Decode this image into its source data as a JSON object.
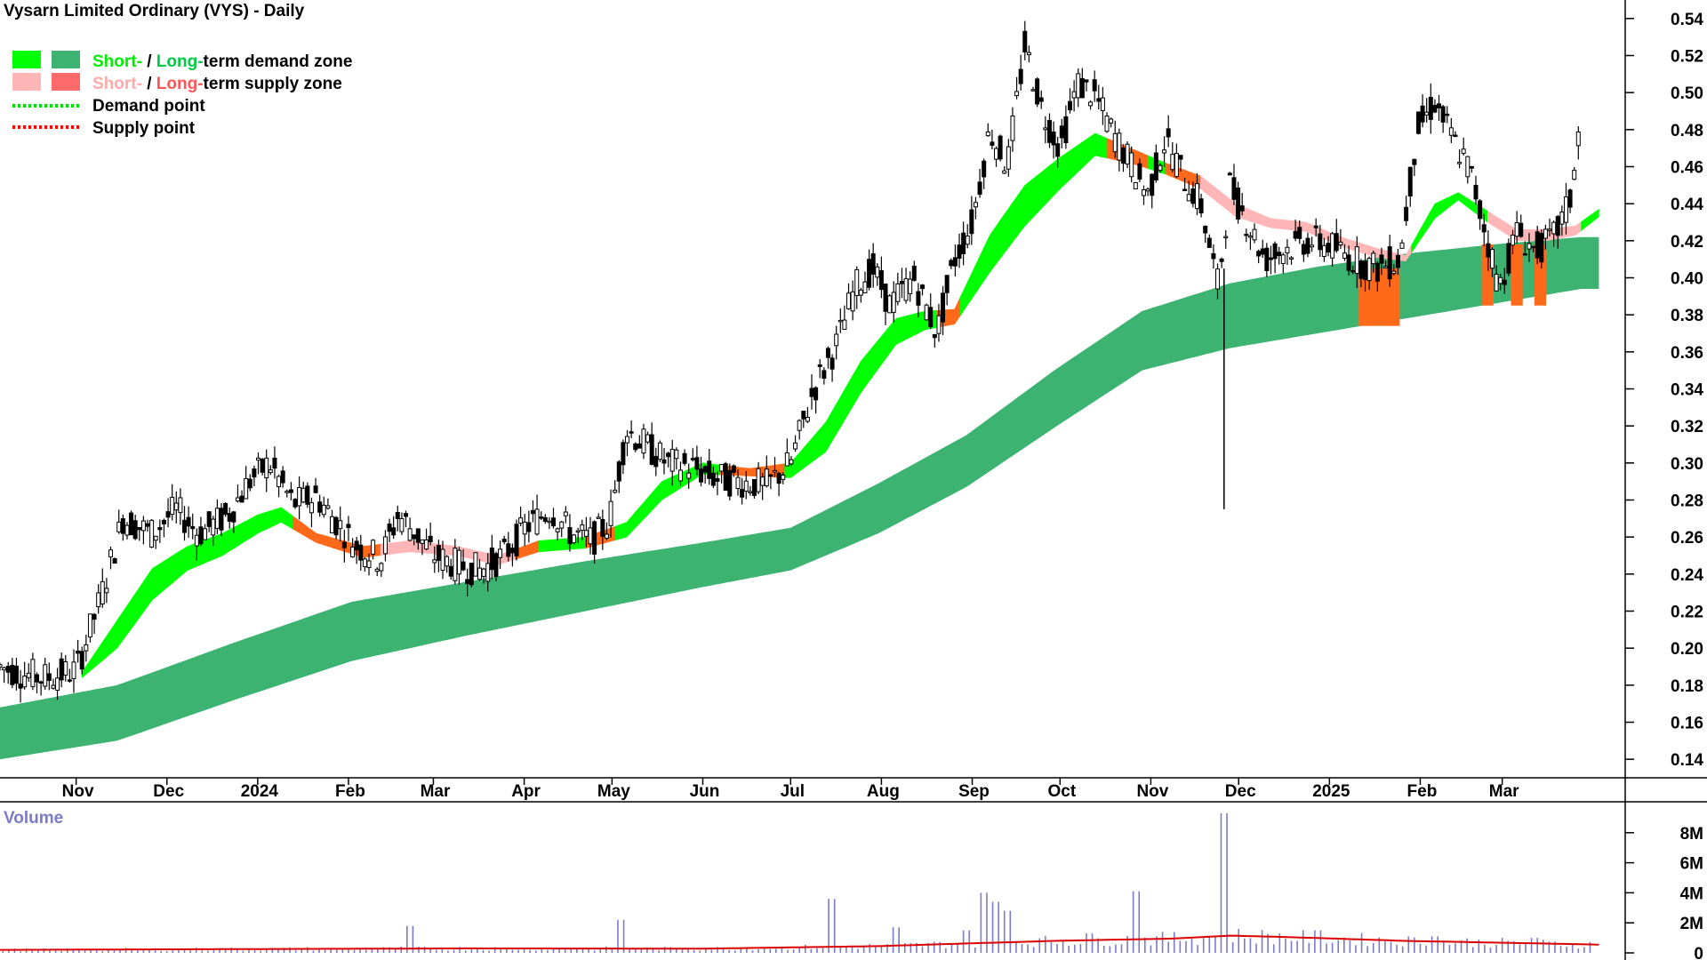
{
  "header": {
    "title": "Vysarn Limited Ordinary (VYS) - Daily"
  },
  "legend": {
    "items": [
      {
        "label_a": "Short-",
        "sep": " / ",
        "label_b": "Long-",
        "rest": "term demand zone",
        "color_a": "#00ff00",
        "color_b": "#3cb371"
      },
      {
        "label_a": "Short-",
        "sep": " / ",
        "label_b": "Long-",
        "rest": "term supply zone",
        "color_a": "#ffb6b6",
        "color_b": "#ff6b6b"
      },
      {
        "label": "Demand point",
        "color": "#00dd00"
      },
      {
        "label": "Supply point",
        "color": "#ff0000"
      }
    ]
  },
  "volume_panel": {
    "label": "Volume"
  },
  "colors": {
    "long_demand": "#3cb371",
    "short_demand": "#00ff00",
    "short_supply": "#ffb6b6",
    "long_supply": "#ff6b6b",
    "orange_zone": "#ff6a1a",
    "candle": "#000000",
    "volume_bar": "#7b7bc8",
    "volume_avg": "#dd0000",
    "grid_axis": "#000000"
  },
  "chart_data": [
    {
      "type": "line",
      "subtype": "candlestick-with-bands",
      "title": "Vysarn Limited Ordinary (VYS) - Daily",
      "ylim": [
        0.13,
        0.55
      ],
      "y_ticks": [
        "0.54",
        "0.52",
        "0.50",
        "0.48",
        "0.46",
        "0.44",
        "0.42",
        "0.40",
        "0.38",
        "0.36",
        "0.34",
        "0.32",
        "0.30",
        "0.28",
        "0.26",
        "0.24",
        "0.22",
        "0.20",
        "0.18",
        "0.16",
        "0.14"
      ],
      "x_months": [
        {
          "label": "Nov",
          "day": 26
        },
        {
          "label": "Dec",
          "day": 57
        },
        {
          "label": "2024",
          "day": 88
        },
        {
          "label": "Feb",
          "day": 119
        },
        {
          "label": "Mar",
          "day": 148
        },
        {
          "label": "Apr",
          "day": 179
        },
        {
          "label": "May",
          "day": 209
        },
        {
          "label": "Jun",
          "day": 240
        },
        {
          "label": "Jul",
          "day": 270
        },
        {
          "label": "Aug",
          "day": 301
        },
        {
          "label": "Sep",
          "day": 332
        },
        {
          "label": "Oct",
          "day": 362
        },
        {
          "label": "Nov",
          "day": 393
        },
        {
          "label": "Dec",
          "day": 423
        },
        {
          "label": "2025",
          "day": 454
        },
        {
          "label": "Feb",
          "day": 485
        },
        {
          "label": "Mar",
          "day": 513
        }
      ],
      "xlim_days": [
        0,
        555
      ],
      "price_path": [
        [
          0,
          0.19
        ],
        [
          8,
          0.186
        ],
        [
          16,
          0.184
        ],
        [
          26,
          0.188
        ],
        [
          34,
          0.225
        ],
        [
          42,
          0.27
        ],
        [
          52,
          0.262
        ],
        [
          60,
          0.275
        ],
        [
          68,
          0.262
        ],
        [
          78,
          0.272
        ],
        [
          85,
          0.29
        ],
        [
          92,
          0.3
        ],
        [
          100,
          0.278
        ],
        [
          108,
          0.282
        ],
        [
          115,
          0.268
        ],
        [
          122,
          0.255
        ],
        [
          130,
          0.248
        ],
        [
          136,
          0.272
        ],
        [
          142,
          0.262
        ],
        [
          148,
          0.25
        ],
        [
          156,
          0.245
        ],
        [
          164,
          0.242
        ],
        [
          172,
          0.25
        ],
        [
          180,
          0.266
        ],
        [
          188,
          0.275
        ],
        [
          195,
          0.262
        ],
        [
          202,
          0.258
        ],
        [
          208,
          0.268
        ],
        [
          214,
          0.318
        ],
        [
          220,
          0.31
        ],
        [
          228,
          0.3
        ],
        [
          236,
          0.298
        ],
        [
          244,
          0.292
        ],
        [
          252,
          0.29
        ],
        [
          262,
          0.288
        ],
        [
          270,
          0.3
        ],
        [
          278,
          0.34
        ],
        [
          286,
          0.365
        ],
        [
          292,
          0.395
        ],
        [
          298,
          0.405
        ],
        [
          304,
          0.385
        ],
        [
          312,
          0.4
        ],
        [
          320,
          0.37
        ],
        [
          326,
          0.41
        ],
        [
          332,
          0.43
        ],
        [
          338,
          0.48
        ],
        [
          344,
          0.46
        ],
        [
          350,
          0.525
        ],
        [
          356,
          0.49
        ],
        [
          362,
          0.47
        ],
        [
          368,
          0.505
        ],
        [
          374,
          0.498
        ],
        [
          380,
          0.478
        ],
        [
          386,
          0.462
        ],
        [
          392,
          0.445
        ],
        [
          398,
          0.475
        ],
        [
          404,
          0.455
        ],
        [
          410,
          0.44
        ],
        [
          416,
          0.395
        ],
        [
          420,
          0.45
        ],
        [
          426,
          0.43
        ],
        [
          432,
          0.41
        ],
        [
          438,
          0.415
        ],
        [
          446,
          0.42
        ],
        [
          454,
          0.418
        ],
        [
          462,
          0.41
        ],
        [
          470,
          0.405
        ],
        [
          478,
          0.41
        ],
        [
          484,
          0.48
        ],
        [
          490,
          0.495
        ],
        [
          496,
          0.475
        ],
        [
          502,
          0.458
        ],
        [
          508,
          0.42
        ],
        [
          512,
          0.395
        ],
        [
          518,
          0.425
        ],
        [
          524,
          0.415
        ],
        [
          530,
          0.42
        ],
        [
          536,
          0.44
        ],
        [
          540,
          0.488
        ]
      ],
      "bands": {
        "long_upper": [
          [
            0,
            0.168
          ],
          [
            40,
            0.18
          ],
          [
            80,
            0.203
          ],
          [
            120,
            0.225
          ],
          [
            160,
            0.236
          ],
          [
            200,
            0.247
          ],
          [
            240,
            0.257
          ],
          [
            270,
            0.265
          ],
          [
            300,
            0.289
          ],
          [
            330,
            0.315
          ],
          [
            360,
            0.35
          ],
          [
            390,
            0.382
          ],
          [
            420,
            0.397
          ],
          [
            450,
            0.406
          ],
          [
            480,
            0.413
          ],
          [
            510,
            0.418
          ],
          [
            540,
            0.422
          ]
        ],
        "long_lower": [
          [
            0,
            0.14
          ],
          [
            40,
            0.15
          ],
          [
            80,
            0.172
          ],
          [
            120,
            0.193
          ],
          [
            160,
            0.207
          ],
          [
            200,
            0.22
          ],
          [
            240,
            0.233
          ],
          [
            270,
            0.242
          ],
          [
            300,
            0.262
          ],
          [
            330,
            0.287
          ],
          [
            360,
            0.319
          ],
          [
            390,
            0.35
          ],
          [
            420,
            0.362
          ],
          [
            450,
            0.37
          ],
          [
            480,
            0.378
          ],
          [
            510,
            0.386
          ],
          [
            540,
            0.394
          ]
        ],
        "short_upper": [
          [
            28,
            0.187
          ],
          [
            40,
            0.215
          ],
          [
            52,
            0.243
          ],
          [
            64,
            0.255
          ],
          [
            76,
            0.262
          ],
          [
            88,
            0.272
          ],
          [
            96,
            0.276
          ],
          [
            108,
            0.262
          ],
          [
            124,
            0.255
          ],
          [
            140,
            0.258
          ],
          [
            156,
            0.255
          ],
          [
            170,
            0.25
          ],
          [
            184,
            0.258
          ],
          [
            200,
            0.26
          ],
          [
            214,
            0.268
          ],
          [
            226,
            0.29
          ],
          [
            240,
            0.3
          ],
          [
            256,
            0.297
          ],
          [
            270,
            0.3
          ],
          [
            282,
            0.322
          ],
          [
            294,
            0.355
          ],
          [
            306,
            0.378
          ],
          [
            316,
            0.382
          ],
          [
            326,
            0.383
          ],
          [
            338,
            0.423
          ],
          [
            350,
            0.45
          ],
          [
            362,
            0.465
          ],
          [
            374,
            0.478
          ],
          [
            386,
            0.47
          ],
          [
            398,
            0.462
          ],
          [
            410,
            0.455
          ],
          [
            422,
            0.44
          ],
          [
            434,
            0.432
          ],
          [
            446,
            0.43
          ],
          [
            458,
            0.422
          ],
          [
            470,
            0.416
          ],
          [
            480,
            0.412
          ],
          [
            490,
            0.44
          ],
          [
            498,
            0.446
          ],
          [
            508,
            0.436
          ],
          [
            518,
            0.426
          ],
          [
            528,
            0.426
          ],
          [
            538,
            0.428
          ],
          [
            546,
            0.437
          ]
        ],
        "short_lower": [
          [
            28,
            0.184
          ],
          [
            40,
            0.2
          ],
          [
            52,
            0.226
          ],
          [
            64,
            0.242
          ],
          [
            76,
            0.25
          ],
          [
            88,
            0.262
          ],
          [
            96,
            0.268
          ],
          [
            108,
            0.257
          ],
          [
            124,
            0.249
          ],
          [
            140,
            0.252
          ],
          [
            156,
            0.25
          ],
          [
            170,
            0.245
          ],
          [
            184,
            0.252
          ],
          [
            200,
            0.254
          ],
          [
            214,
            0.26
          ],
          [
            226,
            0.28
          ],
          [
            240,
            0.294
          ],
          [
            256,
            0.293
          ],
          [
            270,
            0.292
          ],
          [
            282,
            0.306
          ],
          [
            294,
            0.338
          ],
          [
            306,
            0.364
          ],
          [
            316,
            0.372
          ],
          [
            326,
            0.375
          ],
          [
            338,
            0.403
          ],
          [
            350,
            0.428
          ],
          [
            362,
            0.448
          ],
          [
            374,
            0.466
          ],
          [
            386,
            0.462
          ],
          [
            398,
            0.456
          ],
          [
            410,
            0.448
          ],
          [
            422,
            0.433
          ],
          [
            434,
            0.427
          ],
          [
            446,
            0.425
          ],
          [
            458,
            0.417
          ],
          [
            470,
            0.411
          ],
          [
            480,
            0.409
          ],
          [
            490,
            0.432
          ],
          [
            498,
            0.442
          ],
          [
            508,
            0.43
          ],
          [
            518,
            0.42
          ],
          [
            528,
            0.42
          ],
          [
            538,
            0.423
          ],
          [
            546,
            0.433
          ]
        ],
        "short_color_segments": [
          {
            "from": 28,
            "to": 100,
            "kind": "demand"
          },
          {
            "from": 100,
            "to": 130,
            "kind": "supply-strong"
          },
          {
            "from": 130,
            "to": 148,
            "kind": "supply"
          },
          {
            "from": 148,
            "to": 176,
            "kind": "supply"
          },
          {
            "from": 176,
            "to": 184,
            "kind": "supply-strong"
          },
          {
            "from": 184,
            "to": 200,
            "kind": "demand"
          },
          {
            "from": 200,
            "to": 210,
            "kind": "supply-strong"
          },
          {
            "from": 210,
            "to": 246,
            "kind": "demand"
          },
          {
            "from": 246,
            "to": 268,
            "kind": "supply-strong"
          },
          {
            "from": 268,
            "to": 320,
            "kind": "demand"
          },
          {
            "from": 320,
            "to": 328,
            "kind": "supply-strong"
          },
          {
            "from": 328,
            "to": 378,
            "kind": "demand"
          },
          {
            "from": 378,
            "to": 392,
            "kind": "supply-strong"
          },
          {
            "from": 392,
            "to": 398,
            "kind": "demand"
          },
          {
            "from": 398,
            "to": 410,
            "kind": "supply-strong"
          },
          {
            "from": 410,
            "to": 482,
            "kind": "supply"
          },
          {
            "from": 482,
            "to": 508,
            "kind": "demand"
          },
          {
            "from": 508,
            "to": 540,
            "kind": "supply"
          },
          {
            "from": 540,
            "to": 546,
            "kind": "demand"
          }
        ],
        "orange_blocks": [
          [
            464,
            478,
            0.374,
            0.405
          ],
          [
            506,
            510,
            0.385,
            0.418
          ],
          [
            516,
            520,
            0.385,
            0.418
          ],
          [
            524,
            528,
            0.385,
            0.418
          ]
        ]
      },
      "min_spike": {
        "day": 418,
        "value": 0.275
      }
    },
    {
      "type": "bar",
      "title": "Volume",
      "ylim": [
        0,
        10000000
      ],
      "y_ticks": [
        "8M",
        "6M",
        "4M",
        "2M",
        "0"
      ],
      "spikes": [
        {
          "day": 418,
          "value": 9300000
        },
        {
          "day": 388,
          "value": 4100000
        },
        {
          "day": 336,
          "value": 4000000
        },
        {
          "day": 284,
          "value": 3600000
        },
        {
          "day": 340,
          "value": 3400000
        },
        {
          "day": 344,
          "value": 2800000
        },
        {
          "day": 212,
          "value": 2200000
        },
        {
          "day": 140,
          "value": 1800000
        },
        {
          "day": 306,
          "value": 1700000
        },
        {
          "day": 330,
          "value": 1500000
        },
        {
          "day": 450,
          "value": 1500000
        },
        {
          "day": 372,
          "value": 1300000
        },
        {
          "day": 490,
          "value": 1100000
        },
        {
          "day": 524,
          "value": 1000000
        }
      ],
      "average_line": [
        [
          0,
          200000
        ],
        [
          80,
          250000
        ],
        [
          160,
          300000
        ],
        [
          240,
          280000
        ],
        [
          300,
          450000
        ],
        [
          360,
          800000
        ],
        [
          400,
          950000
        ],
        [
          420,
          1150000
        ],
        [
          440,
          1050000
        ],
        [
          480,
          800000
        ],
        [
          520,
          650000
        ],
        [
          546,
          550000
        ]
      ]
    }
  ]
}
